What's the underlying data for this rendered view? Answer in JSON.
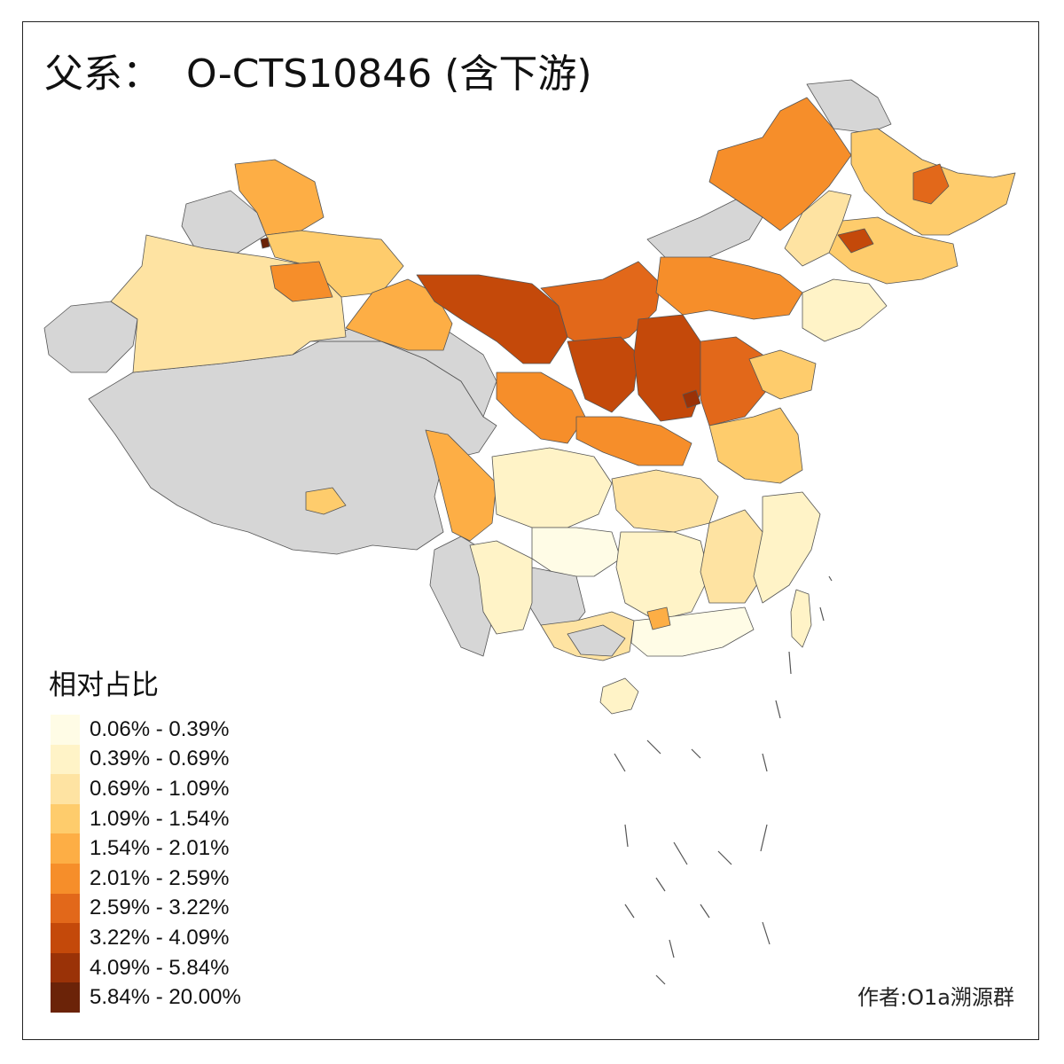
{
  "title": "父系：  O-CTS10846 (含下游)",
  "legend": {
    "title": "相对占比",
    "items": [
      {
        "label": "0.06% - 0.39%",
        "color": "#FFFCE6"
      },
      {
        "label": "0.39% - 0.69%",
        "color": "#FFF3C7"
      },
      {
        "label": "0.69% - 1.09%",
        "color": "#FEE3A2"
      },
      {
        "label": "1.09% - 1.54%",
        "color": "#FECC6C"
      },
      {
        "label": "1.54% - 2.01%",
        "color": "#FDAE45"
      },
      {
        "label": "2.01% - 2.59%",
        "color": "#F68E2A"
      },
      {
        "label": "2.59% - 3.22%",
        "color": "#E2681A"
      },
      {
        "label": "3.22% - 4.09%",
        "color": "#C4490A"
      },
      {
        "label": "4.09% - 5.84%",
        "color": "#9A3207"
      },
      {
        "label": "5.84% - 20.00%",
        "color": "#6B2308"
      }
    ]
  },
  "no_data_color": "#D6D6D6",
  "author": "作者:O1a溯源群"
}
